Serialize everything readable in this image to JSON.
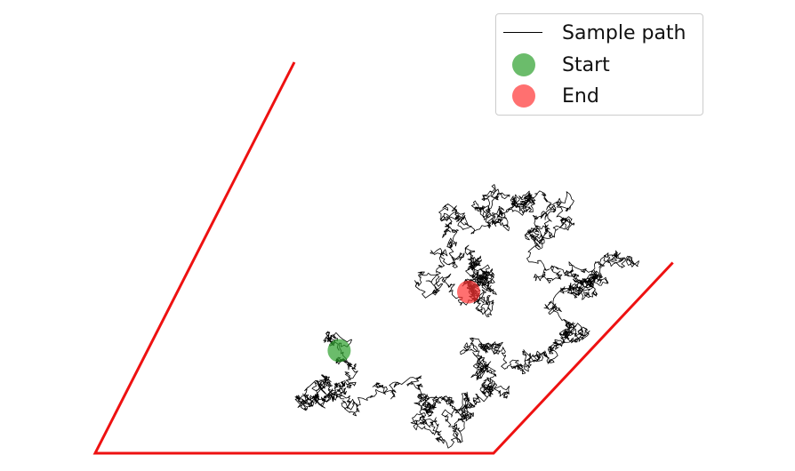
{
  "chart_data": {
    "type": "line",
    "title": "",
    "xlabel": "",
    "ylabel": "",
    "axes_visible": false,
    "grid": false,
    "legend_placement": "top-right",
    "legend": [
      {
        "label": "Sample path",
        "kind": "line",
        "color": "#000000"
      },
      {
        "label": "Start",
        "kind": "marker",
        "color": "#2ca02c"
      },
      {
        "label": "End",
        "kind": "marker",
        "color": "#ff3333"
      }
    ],
    "boundary": {
      "color": "#ee1111",
      "vertices": [
        [
          3.0,
          8.0
        ],
        [
          -1.0,
          0.0
        ],
        [
          7.0,
          0.0
        ],
        [
          10.6,
          3.9
        ]
      ]
    },
    "path": {
      "color": "#000000",
      "seed": 7,
      "n_points": 4200,
      "waypoints": [
        [
          3.9,
          2.1
        ],
        [
          4.2,
          1.6
        ],
        [
          3.6,
          1.5
        ],
        [
          3.4,
          1.3
        ],
        [
          4.1,
          1.2
        ],
        [
          5.4,
          1.5
        ],
        [
          6.0,
          1.1
        ],
        [
          5.6,
          0.6
        ],
        [
          6.3,
          0.9
        ],
        [
          6.9,
          1.2
        ],
        [
          7.0,
          1.7
        ],
        [
          6.4,
          2.0
        ],
        [
          7.2,
          1.8
        ],
        [
          8.1,
          2.0
        ],
        [
          8.5,
          2.4
        ],
        [
          8.2,
          2.9
        ],
        [
          9.0,
          3.3
        ],
        [
          9.4,
          3.9
        ],
        [
          8.6,
          3.3
        ],
        [
          8.0,
          3.6
        ],
        [
          8.4,
          4.6
        ],
        [
          7.9,
          4.7
        ],
        [
          7.5,
          5.0
        ],
        [
          7.3,
          4.6
        ],
        [
          6.7,
          5.0
        ],
        [
          6.1,
          5.0
        ],
        [
          5.9,
          4.1
        ],
        [
          6.3,
          3.1
        ],
        [
          6.8,
          3.2
        ],
        [
          6.6,
          3.8
        ],
        [
          7.0,
          3.6
        ],
        [
          6.5,
          3.3
        ]
      ]
    },
    "start": {
      "x": 3.9,
      "y": 2.1,
      "color": "#2ca02c"
    },
    "end": {
      "x": 6.5,
      "y": 3.3,
      "color": "#ff3333"
    }
  }
}
